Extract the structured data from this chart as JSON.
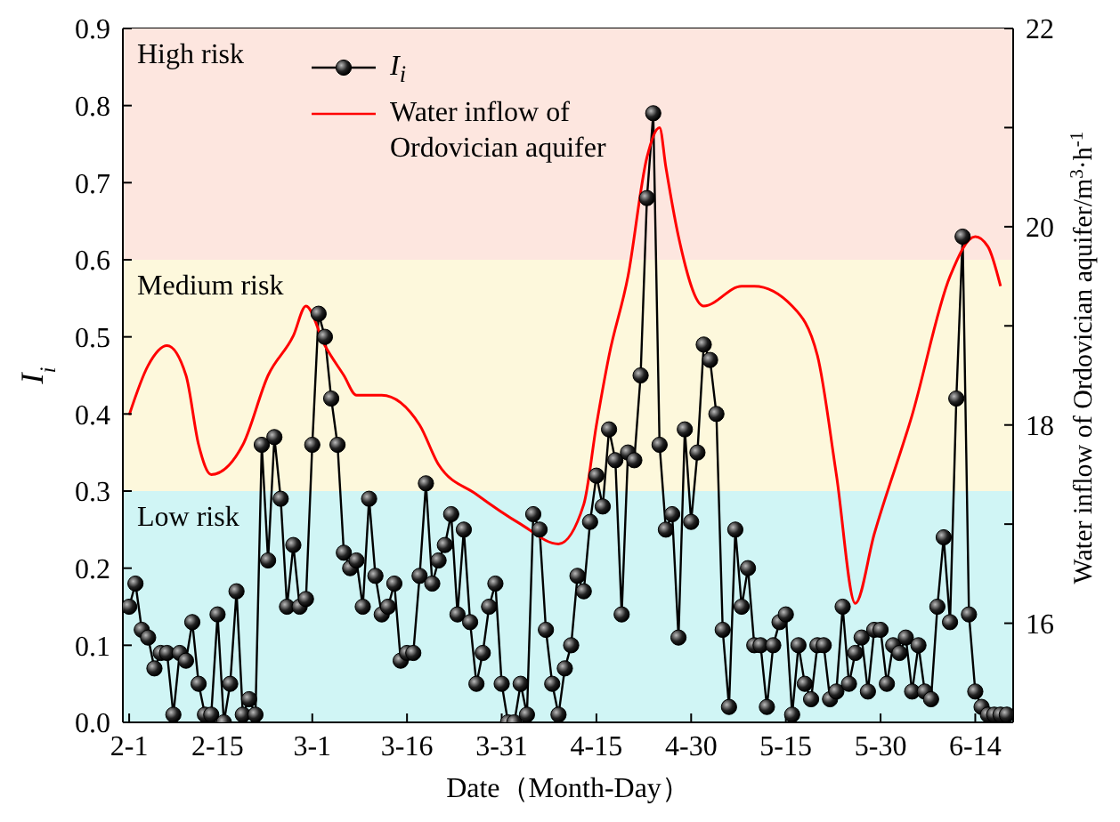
{
  "chart_data": {
    "type": "line",
    "xlabel": "Date（Month-Day）",
    "ylabel": "I$_{i}$",
    "y2label": "Water inflow of Ordovician aquifer/m$^{3}$·h$^{-1}$",
    "xlim": [
      "--01-31",
      "--06-20"
    ],
    "xticks": [
      {
        "value": "--02-01",
        "label": "2-1"
      },
      {
        "value": "--02-15",
        "label": "2-15"
      },
      {
        "value": "--03-01",
        "label": "3-1"
      },
      {
        "value": "--03-16",
        "label": "3-16"
      },
      {
        "value": "--03-31",
        "label": "3-31"
      },
      {
        "value": "--04-15",
        "label": "4-15"
      },
      {
        "value": "--04-30",
        "label": "4-30"
      },
      {
        "value": "--05-15",
        "label": "5-15"
      },
      {
        "value": "--05-30",
        "label": "5-30"
      },
      {
        "value": "--06-14",
        "label": "6-14"
      }
    ],
    "ylim": [
      0,
      0.9
    ],
    "yticks": [
      {
        "value": 0,
        "label": "0.0"
      },
      {
        "value": 0.1,
        "label": "0.1"
      },
      {
        "value": 0.2,
        "label": "0.2"
      },
      {
        "value": 0.3,
        "label": "0.3"
      },
      {
        "value": 0.4,
        "label": "0.4"
      },
      {
        "value": 0.5,
        "label": "0.5"
      },
      {
        "value": 0.6,
        "label": "0.6"
      },
      {
        "value": 0.7,
        "label": "0.7"
      },
      {
        "value": 0.8,
        "label": "0.8"
      },
      {
        "value": 0.9,
        "label": "0.9"
      }
    ],
    "y2lim": [
      15,
      22
    ],
    "y2ticks": [
      {
        "value": 15,
        "label": null
      },
      16,
      {
        "value": 17,
        "label": null
      },
      18,
      {
        "value": 19,
        "label": null
      },
      20,
      {
        "value": 21,
        "label": null
      },
      22
    ],
    "bands": [
      {
        "axis": "y",
        "from": 0.6,
        "to": 0.9,
        "label": "High risk",
        "color": "#fde6df"
      },
      {
        "axis": "y",
        "from": 0.3,
        "to": 0.6,
        "label": "Medium risk",
        "color": "#fdf8dc"
      },
      {
        "axis": "y",
        "from": 0,
        "to": 0.3,
        "label": "Low risk",
        "color": "#d0f5f5"
      }
    ],
    "legend": "top",
    "series": [
      {
        "name": "I$_{i}$",
        "color": "#000000",
        "marker": "circle",
        "x": [
          "--02-01",
          "--02-02",
          "--02-03",
          "--02-04",
          "--02-05",
          "--02-06",
          "--02-07",
          "--02-08",
          "--02-09",
          "--02-10",
          "--02-11",
          "--02-12",
          "--02-13",
          "--02-14",
          "--02-15",
          "--02-16",
          "--02-17",
          "--02-18",
          "--02-19",
          "--02-20",
          "--02-21",
          "--02-22",
          "--02-23",
          "--02-24",
          "--02-25",
          "--02-26",
          "--02-27",
          "--02-28",
          "--02-29",
          "--03-01",
          "--03-02",
          "--03-03",
          "--03-04",
          "--03-05",
          "--03-06",
          "--03-07",
          "--03-08",
          "--03-09",
          "--03-10",
          "--03-11",
          "--03-12",
          "--03-13",
          "--03-14",
          "--03-15",
          "--03-16",
          "--03-17",
          "--03-18",
          "--03-19",
          "--03-20",
          "--03-21",
          "--03-22",
          "--03-23",
          "--03-24",
          "--03-25",
          "--03-26",
          "--03-27",
          "--03-28",
          "--03-29",
          "--03-30",
          "--03-31",
          "--04-01",
          "--04-02",
          "--04-03",
          "--04-04",
          "--04-05",
          "--04-06",
          "--04-07",
          "--04-08",
          "--04-09",
          "--04-10",
          "--04-11",
          "--04-12",
          "--04-13",
          "--04-14",
          "--04-15",
          "--04-16",
          "--04-17",
          "--04-18",
          "--04-19",
          "--04-20",
          "--04-21",
          "--04-22",
          "--04-23",
          "--04-24",
          "--04-25",
          "--04-26",
          "--04-27",
          "--04-28",
          "--04-29",
          "--04-30",
          "--05-01",
          "--05-02",
          "--05-03",
          "--05-04",
          "--05-05",
          "--05-06",
          "--05-07",
          "--05-08",
          "--05-09",
          "--05-10",
          "--05-11",
          "--05-12",
          "--05-13",
          "--05-14",
          "--05-15",
          "--05-16",
          "--05-17",
          "--05-18",
          "--05-19",
          "--05-20",
          "--05-21",
          "--05-22",
          "--05-23",
          "--05-24",
          "--05-25",
          "--05-26",
          "--05-27",
          "--05-28",
          "--05-29",
          "--05-30",
          "--05-31",
          "--06-01",
          "--06-02",
          "--06-03",
          "--06-04",
          "--06-05",
          "--06-06",
          "--06-07",
          "--06-08",
          "--06-09",
          "--06-10",
          "--06-11",
          "--06-12",
          "--06-13",
          "--06-14",
          "--06-15",
          "--06-16",
          "--06-17",
          "--06-18",
          "--06-19"
        ],
        "values": [
          0.15,
          0.18,
          0.12,
          0.11,
          0.07,
          0.09,
          0.09,
          0.01,
          0.09,
          0.08,
          0.13,
          0.05,
          0.01,
          0.01,
          0.14,
          0.0,
          0.05,
          0.17,
          0.01,
          0.03,
          0.01,
          0.36,
          0.21,
          0.37,
          0.29,
          0.15,
          0.23,
          0.15,
          0.16,
          0.36,
          0.53,
          0.5,
          0.42,
          0.36,
          0.22,
          0.2,
          0.21,
          0.15,
          0.29,
          0.19,
          0.14,
          0.15,
          0.18,
          0.08,
          0.09,
          0.09,
          0.19,
          0.31,
          0.18,
          0.21,
          0.23,
          0.27,
          0.14,
          0.25,
          0.13,
          0.05,
          0.09,
          0.15,
          0.18,
          0.05,
          0.0,
          0.0,
          0.05,
          0.01,
          0.27,
          0.25,
          0.12,
          0.05,
          0.01,
          0.07,
          0.1,
          0.19,
          0.17,
          0.26,
          0.32,
          0.28,
          0.38,
          0.34,
          0.14,
          0.35,
          0.34,
          0.45,
          0.68,
          0.79,
          0.36,
          0.25,
          0.27,
          0.11,
          0.38,
          0.26,
          0.35,
          0.49,
          0.47,
          0.4,
          0.12,
          0.02,
          0.25,
          0.15,
          0.2,
          0.1,
          0.1,
          0.02,
          0.1,
          0.13,
          0.14,
          0.01,
          0.1,
          0.05,
          0.03,
          0.1,
          0.1,
          0.03,
          0.04,
          0.15,
          0.05,
          0.09,
          0.11,
          0.04,
          0.12,
          0.12,
          0.05,
          0.1,
          0.09,
          0.11,
          0.04,
          0.1,
          0.04,
          0.03,
          0.15,
          0.24,
          0.13,
          0.42,
          0.63,
          0.14,
          0.04,
          0.02,
          0.01,
          0.01,
          0.01,
          0.01
        ]
      },
      {
        "name": "Water inflow of Ordovician aquifer",
        "color": "#ff0000",
        "axis": "y2",
        "marker": "none",
        "x": [
          "--02-01",
          "--02-04",
          "--02-07",
          "--02-10",
          "--02-12",
          "--02-14",
          "--02-19",
          "--02-23",
          "--02-27",
          "--02-29",
          "--03-03",
          "--03-06",
          "--03-08",
          "--03-12",
          "--03-18",
          "--03-21",
          "--03-27",
          "--04-03",
          "--04-09",
          "--04-13",
          "--04-15",
          "--04-17",
          "--04-20",
          "--04-23",
          "--04-25",
          "--04-26",
          "--04-28",
          "--05-02",
          "--05-08",
          "--05-10",
          "--05-16",
          "--05-20",
          "--05-23",
          "--05-26",
          "--05-29",
          "--06-04",
          "--06-10",
          "--06-14",
          "--06-16",
          "--06-18"
        ],
        "values": [
          18.1,
          18.6,
          18.8,
          18.5,
          17.8,
          17.5,
          17.8,
          18.5,
          18.9,
          19.2,
          18.8,
          18.5,
          18.3,
          18.3,
          18.0,
          17.6,
          17.3,
          17.0,
          16.8,
          17.2,
          18.0,
          18.7,
          19.5,
          20.7,
          21.0,
          20.6,
          19.9,
          19.2,
          19.4,
          19.4,
          19.2,
          18.7,
          17.5,
          16.2,
          16.9,
          18.1,
          19.5,
          19.9,
          19.8,
          19.4
        ]
      }
    ]
  }
}
